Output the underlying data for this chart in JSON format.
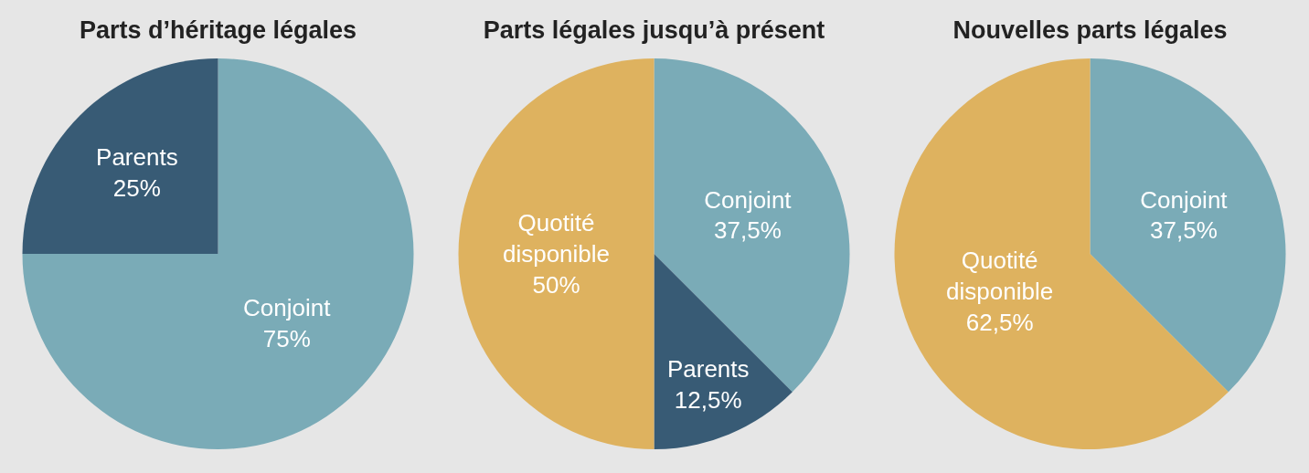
{
  "chart_data": [
    {
      "type": "pie",
      "title": "Parts d’héritage légales",
      "categories": [
        "Conjoint",
        "Parents"
      ],
      "values": [
        75,
        25
      ],
      "value_labels": [
        "75%",
        "25%"
      ],
      "colors": [
        "#7aabb7",
        "#385b75"
      ],
      "legend": false
    },
    {
      "type": "pie",
      "title": "Parts légales jusqu’à présent",
      "categories": [
        "Conjoint",
        "Parents",
        "Quotité disponible"
      ],
      "values": [
        37.5,
        12.5,
        50
      ],
      "value_labels": [
        "37,5%",
        "12,5%",
        "50%"
      ],
      "colors": [
        "#7aabb7",
        "#385b75",
        "#deb25f"
      ],
      "legend": false
    },
    {
      "type": "pie",
      "title": "Nouvelles parts légales",
      "categories": [
        "Conjoint",
        "Quotité disponible"
      ],
      "values": [
        37.5,
        62.5
      ],
      "value_labels": [
        "37,5%",
        "62,5%"
      ],
      "colors": [
        "#7aabb7",
        "#deb25f"
      ],
      "legend": false
    }
  ]
}
